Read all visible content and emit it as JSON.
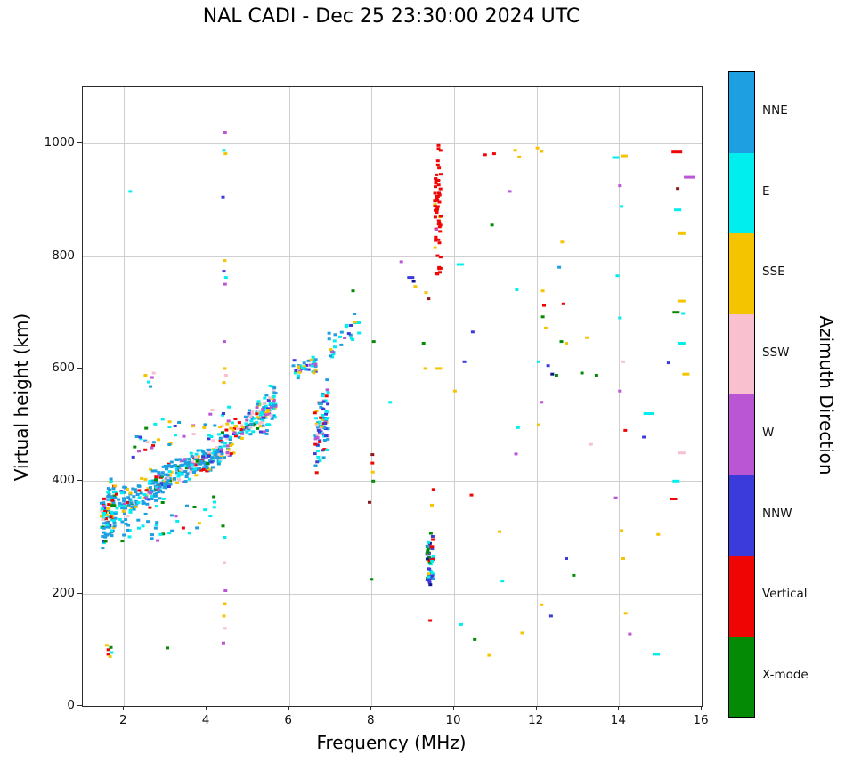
{
  "chart_data": {
    "type": "scatter",
    "title": "NAL CADI - Dec 25 23:30:00 2024 UTC",
    "xlabel": "Frequency (MHz)",
    "ylabel": "Virtual height (km)",
    "xlim": [
      1,
      16
    ],
    "ylim": [
      0,
      1100
    ],
    "xticks": [
      2,
      4,
      6,
      8,
      10,
      12,
      14,
      16
    ],
    "yticks": [
      0,
      200,
      400,
      600,
      800,
      1000
    ],
    "grid": true,
    "grid_color": "#cfcfcf",
    "marker": {
      "w": 4,
      "h": 3
    },
    "seed": 20241225,
    "colors": {
      "NNE": "#1d9fe1",
      "E": "#00eeee",
      "SSE": "#f5c400",
      "SSW": "#f9c0cf",
      "W": "#ba55d3",
      "NNW": "#3b3bdc",
      "V": "#f00505",
      "X": "#058a05",
      "DR": "#8c1a1a",
      "NB": "#14148c"
    },
    "colorbar": {
      "label": "Azimuth Direction",
      "position": "right",
      "categories": [
        {
          "key": "NNE",
          "label": "NNE"
        },
        {
          "key": "E",
          "label": "E"
        },
        {
          "key": "SSE",
          "label": "SSE"
        },
        {
          "key": "SSW",
          "label": "SSW"
        },
        {
          "key": "W",
          "label": "W"
        },
        {
          "key": "NNW",
          "label": "NNW"
        },
        {
          "key": "V",
          "label": "Vertical"
        },
        {
          "key": "X",
          "label": "X-mode"
        }
      ]
    },
    "clusters": [
      {
        "name": "left-edge-column",
        "n": 100,
        "x": [
          1.45,
          1.8
        ],
        "y0": 330,
        "y1": 360,
        "spread": 120,
        "weights": {
          "NNE": 4,
          "E": 2.5,
          "V": 1,
          "SSE": 1,
          "W": 0.7,
          "NNW": 0.6,
          "X": 0.7,
          "SSW": 0.4
        }
      },
      {
        "name": "trace-rise-1",
        "n": 150,
        "x": [
          1.75,
          3.05
        ],
        "y0": 345,
        "y1": 400,
        "spread": 80,
        "weights": {
          "NNE": 6,
          "E": 2,
          "SSE": 1,
          "V": 0.7,
          "W": 0.6,
          "NNW": 0.6,
          "X": 0.5,
          "SSW": 0.3
        }
      },
      {
        "name": "trace-rise-2",
        "n": 190,
        "x": [
          3.0,
          4.35
        ],
        "y0": 405,
        "y1": 450,
        "spread": 55,
        "weights": {
          "NNE": 8,
          "E": 2,
          "SSE": 1,
          "V": 0.8,
          "W": 0.7,
          "NNW": 0.7,
          "X": 0.4,
          "SSW": 0.4
        }
      },
      {
        "name": "trace-steep",
        "n": 110,
        "x": [
          4.3,
          5.35
        ],
        "y0": 455,
        "y1": 525,
        "spread": 60,
        "weights": {
          "NNE": 3,
          "E": 3,
          "SSW": 1.5,
          "W": 1.5,
          "SSE": 1.2,
          "NNW": 0.8,
          "V": 0.5,
          "X": 0.3
        }
      },
      {
        "name": "trace-cusp-column",
        "n": 70,
        "x": [
          5.3,
          5.68
        ],
        "y0": 505,
        "y1": 545,
        "spread": 85,
        "weights": {
          "E": 3,
          "NNE": 2,
          "SSW": 1.5,
          "SSE": 1.3,
          "W": 1.3,
          "NNW": 0.7
        }
      },
      {
        "name": "halo-above-trace",
        "n": 45,
        "x": [
          2.2,
          4.7
        ],
        "y0": 465,
        "y1": 505,
        "spread": 70,
        "weights": {
          "NNE": 2,
          "E": 1.5,
          "SSE": 1,
          "W": 0.8,
          "SSW": 0.8,
          "NNW": 0.5,
          "V": 0.4,
          "X": 0.3
        }
      },
      {
        "name": "scatter-below-trace",
        "n": 35,
        "x": [
          1.8,
          4.2
        ],
        "y0": 300,
        "y1": 345,
        "spread": 60,
        "weights": {
          "NNE": 2,
          "E": 1.2,
          "SSE": 0.8,
          "V": 0.5,
          "W": 0.5,
          "NNW": 0.4,
          "X": 0.4
        }
      },
      {
        "name": "second-trace-flat",
        "n": 40,
        "x": [
          6.1,
          6.65
        ],
        "y0": 595,
        "y1": 610,
        "spread": 45,
        "weights": {
          "E": 2.5,
          "NNE": 2,
          "NNW": 1,
          "SSE": 0.8,
          "W": 0.6
        }
      },
      {
        "name": "second-trace-column",
        "n": 85,
        "x": [
          6.62,
          6.95
        ],
        "y0": 470,
        "y1": 520,
        "spread": 140,
        "weights": {
          "NNW": 2,
          "E": 2,
          "NNE": 1.5,
          "W": 1.2,
          "V": 1,
          "SSE": 1,
          "SSW": 0.8
        }
      },
      {
        "name": "upper-scatter-7mhz",
        "n": 28,
        "x": [
          6.95,
          7.7
        ],
        "y0": 630,
        "y1": 678,
        "spread": 70,
        "weights": {
          "E": 2,
          "NNE": 1.5,
          "W": 0.7,
          "NNW": 0.7,
          "SSE": 0.5
        }
      },
      {
        "name": "vertical-red-column-9p6",
        "n": 60,
        "x": [
          9.53,
          9.68
        ],
        "y0": 872,
        "y1": 872,
        "spread": 295,
        "weights": {
          "V": 12,
          "SSE": 0.5,
          "W": 0.5,
          "SSW": 0.5
        }
      },
      {
        "name": "mid-column-9p4",
        "n": 50,
        "x": [
          9.34,
          9.5
        ],
        "y0": 262,
        "y1": 262,
        "spread": 120,
        "weights": {
          "NNW": 2,
          "E": 1.5,
          "X": 1.5,
          "V": 1,
          "NNE": 1,
          "NB": 1,
          "SSE": 0.5
        }
      }
    ],
    "points": [
      [
        1.58,
        108,
        "SSE",
        1
      ],
      [
        1.62,
        100,
        "V",
        1
      ],
      [
        1.62,
        92,
        "V",
        1
      ],
      [
        1.68,
        104,
        "X",
        1
      ],
      [
        1.7,
        95,
        "E",
        1
      ],
      [
        1.66,
        88,
        "SSE",
        1
      ],
      [
        3.05,
        103,
        "X",
        1
      ],
      [
        2.15,
        915,
        "E",
        1
      ],
      [
        2.52,
        588,
        "SSE",
        1
      ],
      [
        2.6,
        576,
        "E",
        1
      ],
      [
        2.68,
        584,
        "W",
        1
      ],
      [
        2.64,
        568,
        "NNE",
        1
      ],
      [
        2.72,
        592,
        "SSW",
        1
      ],
      [
        4.45,
        1020,
        "W",
        1
      ],
      [
        4.42,
        988,
        "E",
        1
      ],
      [
        4.46,
        982,
        "SSE",
        1
      ],
      [
        4.4,
        905,
        "NNW",
        1
      ],
      [
        4.44,
        792,
        "SSE",
        1
      ],
      [
        4.42,
        773,
        "NNW",
        1
      ],
      [
        4.47,
        762,
        "E",
        1
      ],
      [
        4.45,
        750,
        "W",
        1
      ],
      [
        4.43,
        648,
        "W",
        1
      ],
      [
        4.44,
        600,
        "SSE",
        1
      ],
      [
        4.47,
        588,
        "SSW",
        1
      ],
      [
        4.42,
        575,
        "SSE",
        1
      ],
      [
        4.41,
        520,
        "NNW",
        1
      ],
      [
        4.4,
        320,
        "X",
        1
      ],
      [
        4.44,
        300,
        "E",
        1
      ],
      [
        4.43,
        255,
        "SSW",
        1
      ],
      [
        4.46,
        205,
        "W",
        1
      ],
      [
        4.44,
        182,
        "SSE",
        1
      ],
      [
        4.42,
        160,
        "SSE",
        1
      ],
      [
        4.45,
        138,
        "SSW",
        1
      ],
      [
        4.41,
        112,
        "W",
        1
      ],
      [
        7.55,
        738,
        "X",
        1
      ],
      [
        8.05,
        648,
        "X",
        1
      ],
      [
        7.95,
        362,
        "DR",
        1
      ],
      [
        8.0,
        225,
        "X",
        1
      ],
      [
        8.02,
        447,
        "DR",
        1
      ],
      [
        8.02,
        432,
        "V",
        1
      ],
      [
        8.03,
        416,
        "SSE",
        1
      ],
      [
        8.04,
        400,
        "X",
        1
      ],
      [
        8.45,
        540,
        "E",
        1
      ],
      [
        8.72,
        790,
        "W",
        1
      ],
      [
        8.95,
        762,
        "NNW",
        2
      ],
      [
        9.02,
        755,
        "NB",
        1
      ],
      [
        9.06,
        746,
        "SSE",
        1
      ],
      [
        9.32,
        735,
        "SSE",
        1
      ],
      [
        9.38,
        724,
        "DR",
        1
      ],
      [
        9.26,
        645,
        "X",
        1
      ],
      [
        9.3,
        600,
        "SSE",
        1
      ],
      [
        9.62,
        600,
        "SSE",
        2
      ],
      [
        9.5,
        385,
        "V",
        1
      ],
      [
        9.46,
        357,
        "SSE",
        1
      ],
      [
        9.42,
        152,
        "V",
        1
      ],
      [
        10.15,
        785,
        "E",
        2
      ],
      [
        10.45,
        665,
        "NNW",
        1
      ],
      [
        10.25,
        612,
        "NNW",
        1
      ],
      [
        10.02,
        560,
        "SSE",
        1
      ],
      [
        10.42,
        375,
        "V",
        1
      ],
      [
        10.17,
        145,
        "E",
        1
      ],
      [
        10.5,
        118,
        "X",
        1
      ],
      [
        10.85,
        90,
        "SSE",
        1
      ],
      [
        10.75,
        980,
        "V",
        1
      ],
      [
        10.97,
        982,
        "V",
        1
      ],
      [
        10.92,
        855,
        "X",
        1
      ],
      [
        11.1,
        310,
        "SSE",
        1
      ],
      [
        11.17,
        222,
        "E",
        1
      ],
      [
        11.48,
        988,
        "SSE",
        1
      ],
      [
        11.58,
        976,
        "SSE",
        1
      ],
      [
        11.35,
        915,
        "W",
        1
      ],
      [
        11.52,
        740,
        "E",
        1
      ],
      [
        11.55,
        495,
        "E",
        1
      ],
      [
        11.5,
        448,
        "W",
        1
      ],
      [
        11.65,
        130,
        "SSE",
        1
      ],
      [
        12.02,
        992,
        "SSE",
        1
      ],
      [
        12.12,
        986,
        "SSE",
        1
      ],
      [
        12.15,
        738,
        "SSE",
        1
      ],
      [
        12.18,
        712,
        "V",
        1
      ],
      [
        12.15,
        692,
        "X",
        1
      ],
      [
        12.22,
        672,
        "SSE",
        1
      ],
      [
        12.55,
        780,
        "NNE",
        1
      ],
      [
        12.05,
        612,
        "E",
        1
      ],
      [
        12.28,
        605,
        "NNW",
        1
      ],
      [
        12.38,
        590,
        "NB",
        1
      ],
      [
        12.48,
        588,
        "X",
        1
      ],
      [
        12.12,
        540,
        "W",
        1
      ],
      [
        12.05,
        500,
        "SSE",
        1
      ],
      [
        12.12,
        180,
        "SSE",
        1
      ],
      [
        12.35,
        160,
        "NNW",
        1
      ],
      [
        12.62,
        825,
        "SSE",
        1
      ],
      [
        12.65,
        715,
        "V",
        1
      ],
      [
        12.6,
        648,
        "X",
        1
      ],
      [
        12.72,
        645,
        "SSE",
        1
      ],
      [
        12.72,
        262,
        "NNW",
        1
      ],
      [
        12.9,
        232,
        "X",
        1
      ],
      [
        13.22,
        655,
        "SSE",
        1
      ],
      [
        13.1,
        592,
        "X",
        1
      ],
      [
        13.45,
        588,
        "X",
        1
      ],
      [
        13.32,
        465,
        "SSW",
        1
      ],
      [
        13.92,
        975,
        "E",
        2
      ],
      [
        14.12,
        978,
        "SSE",
        2
      ],
      [
        14.02,
        925,
        "W",
        1
      ],
      [
        14.06,
        888,
        "E",
        1
      ],
      [
        13.96,
        765,
        "E",
        1
      ],
      [
        14.02,
        690,
        "E",
        1
      ],
      [
        14.1,
        612,
        "SSW",
        1
      ],
      [
        14.02,
        560,
        "W",
        1
      ],
      [
        14.15,
        490,
        "V",
        1
      ],
      [
        13.92,
        370,
        "W",
        1
      ],
      [
        14.06,
        312,
        "SSE",
        1
      ],
      [
        14.1,
        262,
        "SSE",
        1
      ],
      [
        14.16,
        165,
        "SSE",
        1
      ],
      [
        14.26,
        128,
        "W",
        1
      ],
      [
        14.6,
        478,
        "NNW",
        1
      ],
      [
        14.72,
        520,
        "E",
        3
      ],
      [
        14.95,
        305,
        "SSE",
        1
      ],
      [
        14.9,
        92,
        "E",
        2
      ],
      [
        15.4,
        985,
        "V",
        3
      ],
      [
        15.42,
        920,
        "DR",
        1
      ],
      [
        15.42,
        882,
        "E",
        2
      ],
      [
        15.52,
        840,
        "SSE",
        2
      ],
      [
        15.7,
        940,
        "W",
        3
      ],
      [
        15.52,
        720,
        "SSE",
        2
      ],
      [
        15.38,
        700,
        "X",
        2
      ],
      [
        15.55,
        698,
        "E",
        1
      ],
      [
        15.52,
        645,
        "E",
        2
      ],
      [
        15.62,
        590,
        "SSE",
        2
      ],
      [
        15.2,
        610,
        "NNW",
        1
      ],
      [
        15.52,
        450,
        "SSW",
        2
      ],
      [
        15.38,
        400,
        "E",
        2
      ],
      [
        15.32,
        368,
        "V",
        2
      ]
    ]
  }
}
